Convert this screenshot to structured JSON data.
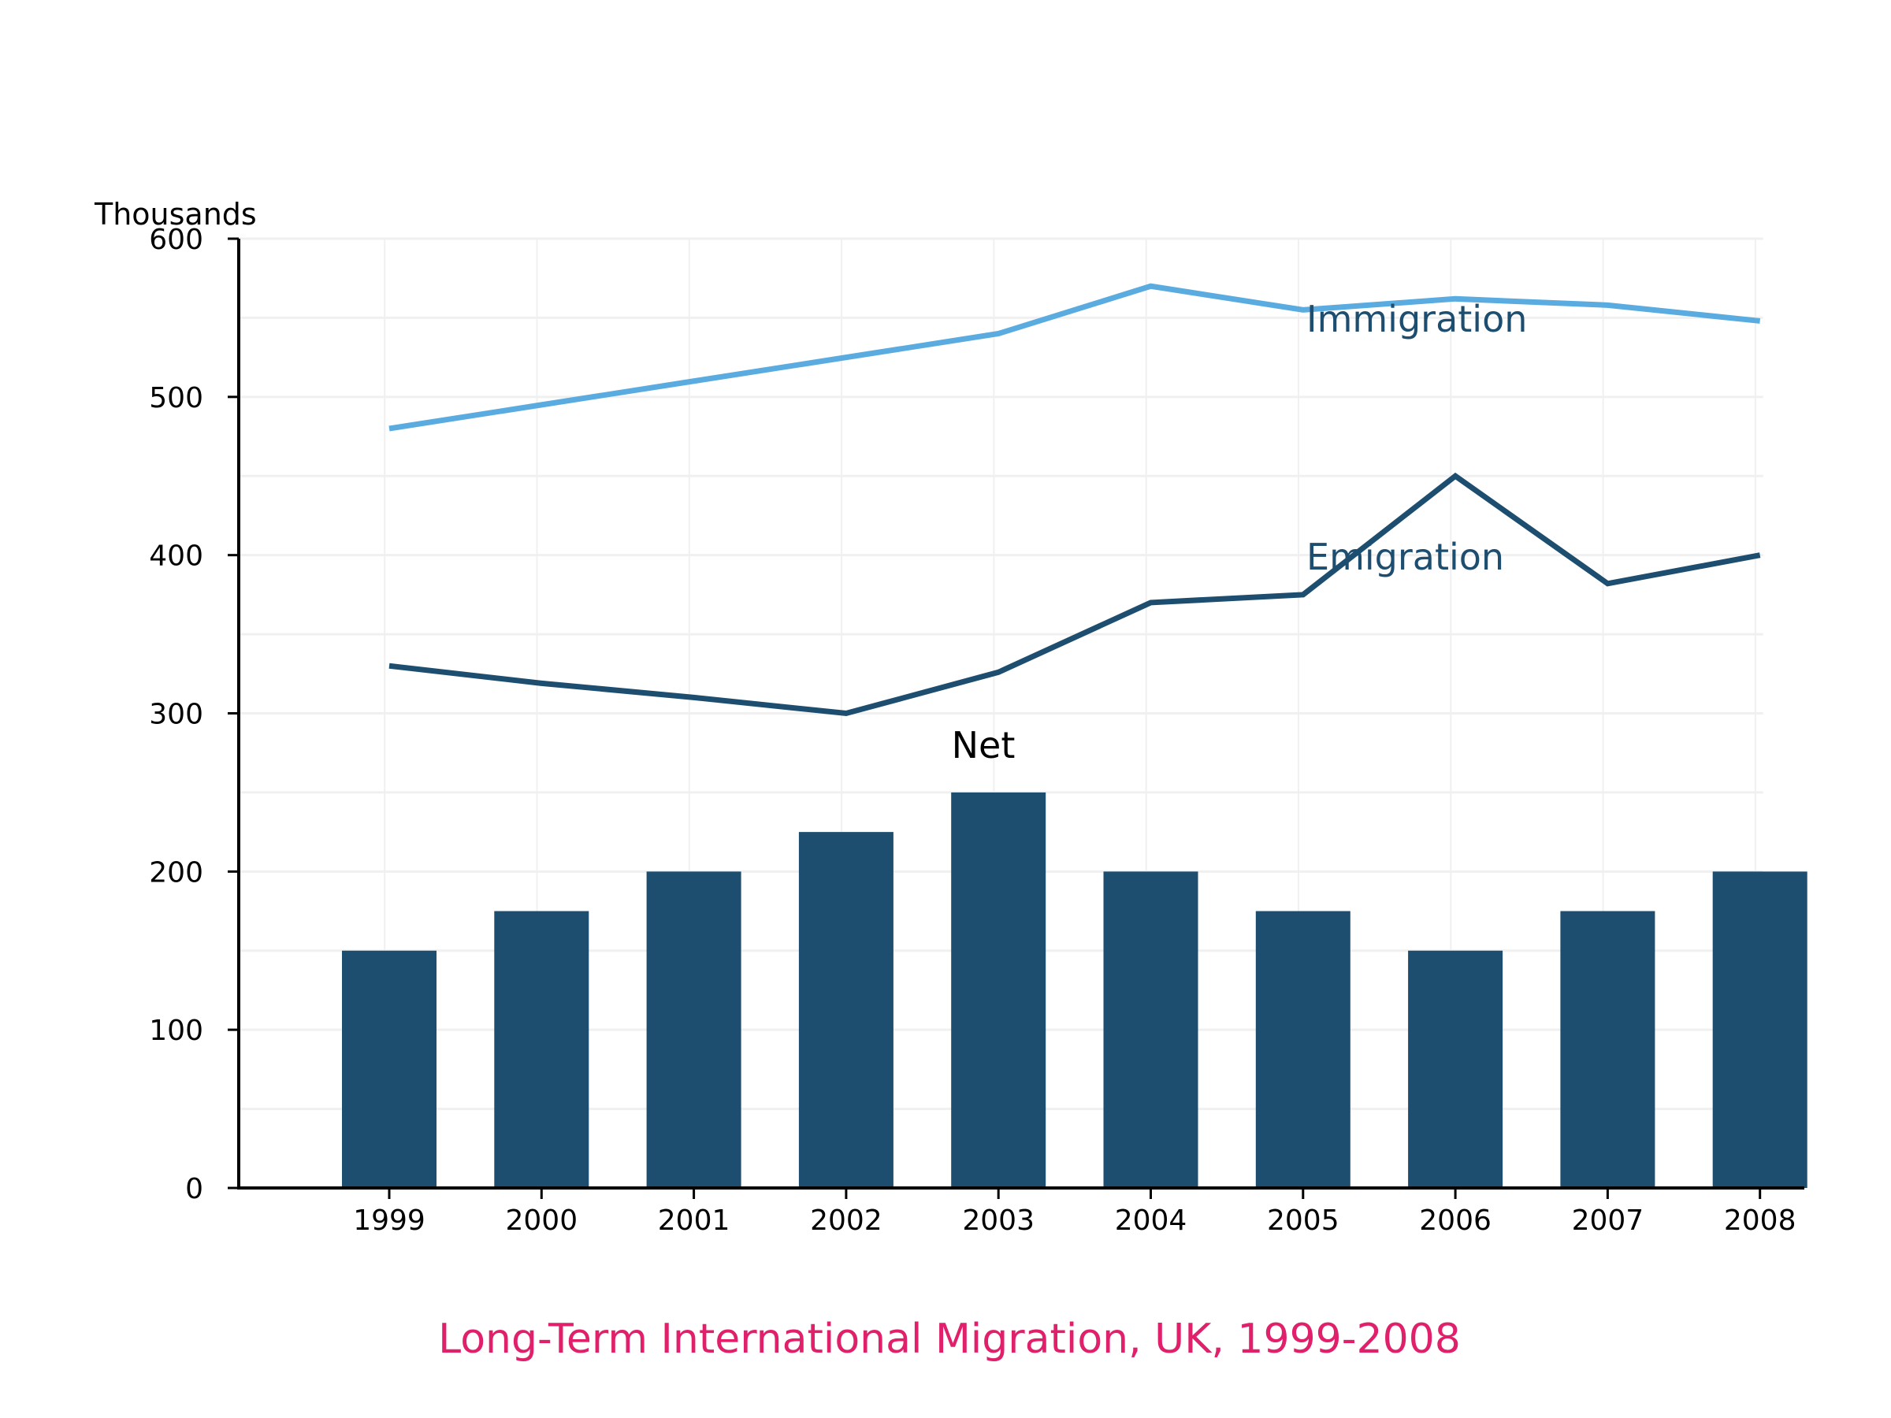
{
  "chart_data": {
    "type": "bar",
    "title": "Long-Term International Migration, UK, 1999-2008",
    "ylabel": "Thousands",
    "xlabel": "",
    "ylim": [
      0,
      600
    ],
    "yticks": [
      0,
      100,
      200,
      300,
      400,
      500,
      600
    ],
    "grid": true,
    "categories": [
      "1999",
      "2000",
      "2001",
      "2002",
      "2003",
      "2004",
      "2005",
      "2006",
      "2007",
      "2008"
    ],
    "series": [
      {
        "name": "Net",
        "type": "bar",
        "color": "#1d4e70",
        "values": [
          150,
          175,
          200,
          225,
          250,
          200,
          175,
          150,
          175,
          200
        ]
      },
      {
        "name": "Immigration",
        "type": "line",
        "color": "#5aabdf",
        "values": [
          480,
          495,
          510,
          525,
          540,
          570,
          555,
          562,
          558,
          548
        ]
      },
      {
        "name": "Emigration",
        "type": "line",
        "color": "#1d4e70",
        "values": [
          330,
          319,
          310,
          300,
          326,
          370,
          375,
          450,
          382,
          400
        ]
      }
    ]
  },
  "colors": {
    "title": "#e0206a",
    "series_label": "#1d4e70",
    "net_label": "#000000",
    "axis": "#000000",
    "grid": "#f0f0f0"
  }
}
